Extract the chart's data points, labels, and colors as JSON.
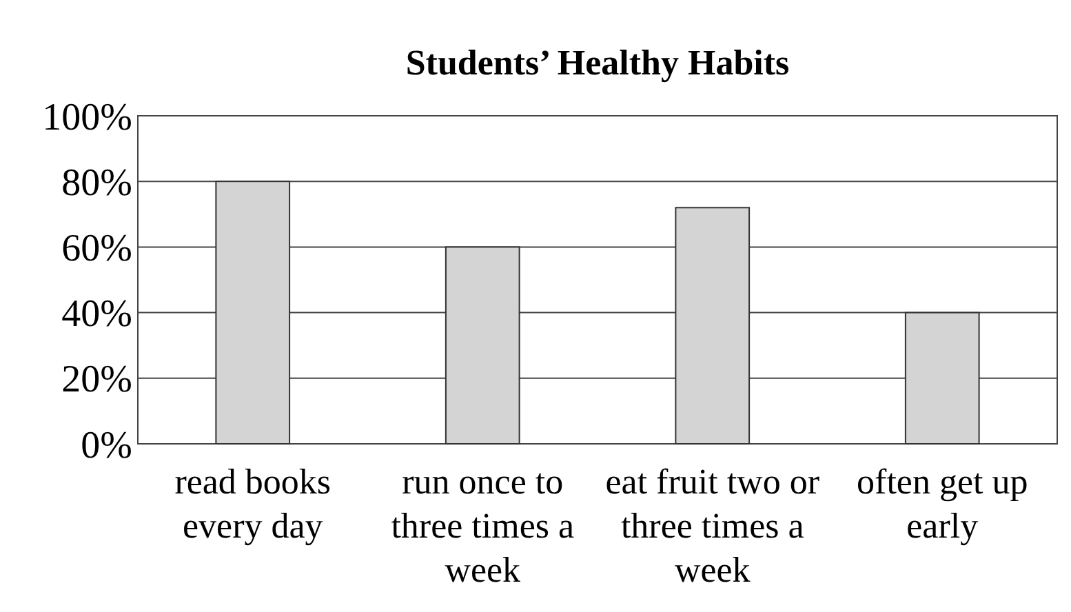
{
  "chart_data": {
    "type": "bar",
    "title": "Students’ Healthy Habits",
    "categories": [
      "read books every day",
      "run once to three times a week",
      "eat fruit two or three times a week",
      "often get up early"
    ],
    "values": [
      80,
      60,
      72,
      40
    ],
    "color": "#d4d4d4",
    "ylim": [
      0,
      100
    ],
    "yticks": [
      {
        "value": 0,
        "label": "0%"
      },
      {
        "value": 20,
        "label": "20%"
      },
      {
        "value": 40,
        "label": "40%"
      },
      {
        "value": 60,
        "label": "60%"
      },
      {
        "value": 80,
        "label": "80%"
      },
      {
        "value": 100,
        "label": "100%"
      }
    ],
    "grid": "y"
  }
}
